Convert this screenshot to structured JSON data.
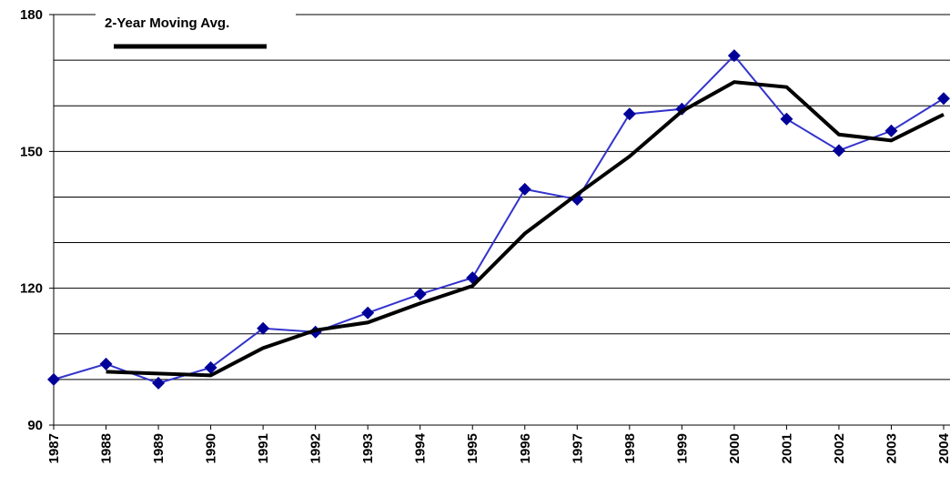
{
  "chart_data": {
    "type": "line",
    "categories": [
      "1987",
      "1988",
      "1989",
      "1990",
      "1991",
      "1992",
      "1993",
      "1994",
      "1995",
      "1996",
      "1997",
      "1998",
      "1999",
      "2000",
      "2001",
      "2002",
      "2003",
      "2004"
    ],
    "series": [
      {
        "color": "#3333cc",
        "marker": "diamond",
        "marker_color": "#000099",
        "values": [
          100.0,
          103.4,
          99.2,
          102.6,
          111.2,
          110.4,
          114.6,
          118.7,
          122.3,
          141.7,
          139.5,
          158.2,
          159.3,
          171.0,
          157.1,
          150.2,
          154.5,
          161.6
        ]
      },
      {
        "name": "2-Year Moving Avg.",
        "color": "#000000",
        "values": [
          null,
          101.7,
          101.3,
          100.9,
          106.9,
          110.8,
          112.5,
          116.7,
          120.5,
          132.0,
          140.6,
          148.9,
          158.8,
          165.2,
          164.1,
          153.7,
          152.4,
          158.1
        ]
      }
    ],
    "ylim": [
      90,
      180
    ],
    "yticks": [
      90,
      120,
      150,
      180
    ],
    "minor_yticks": [
      100,
      110,
      130,
      140,
      160,
      170
    ],
    "grid": true,
    "legend": "top-left"
  }
}
